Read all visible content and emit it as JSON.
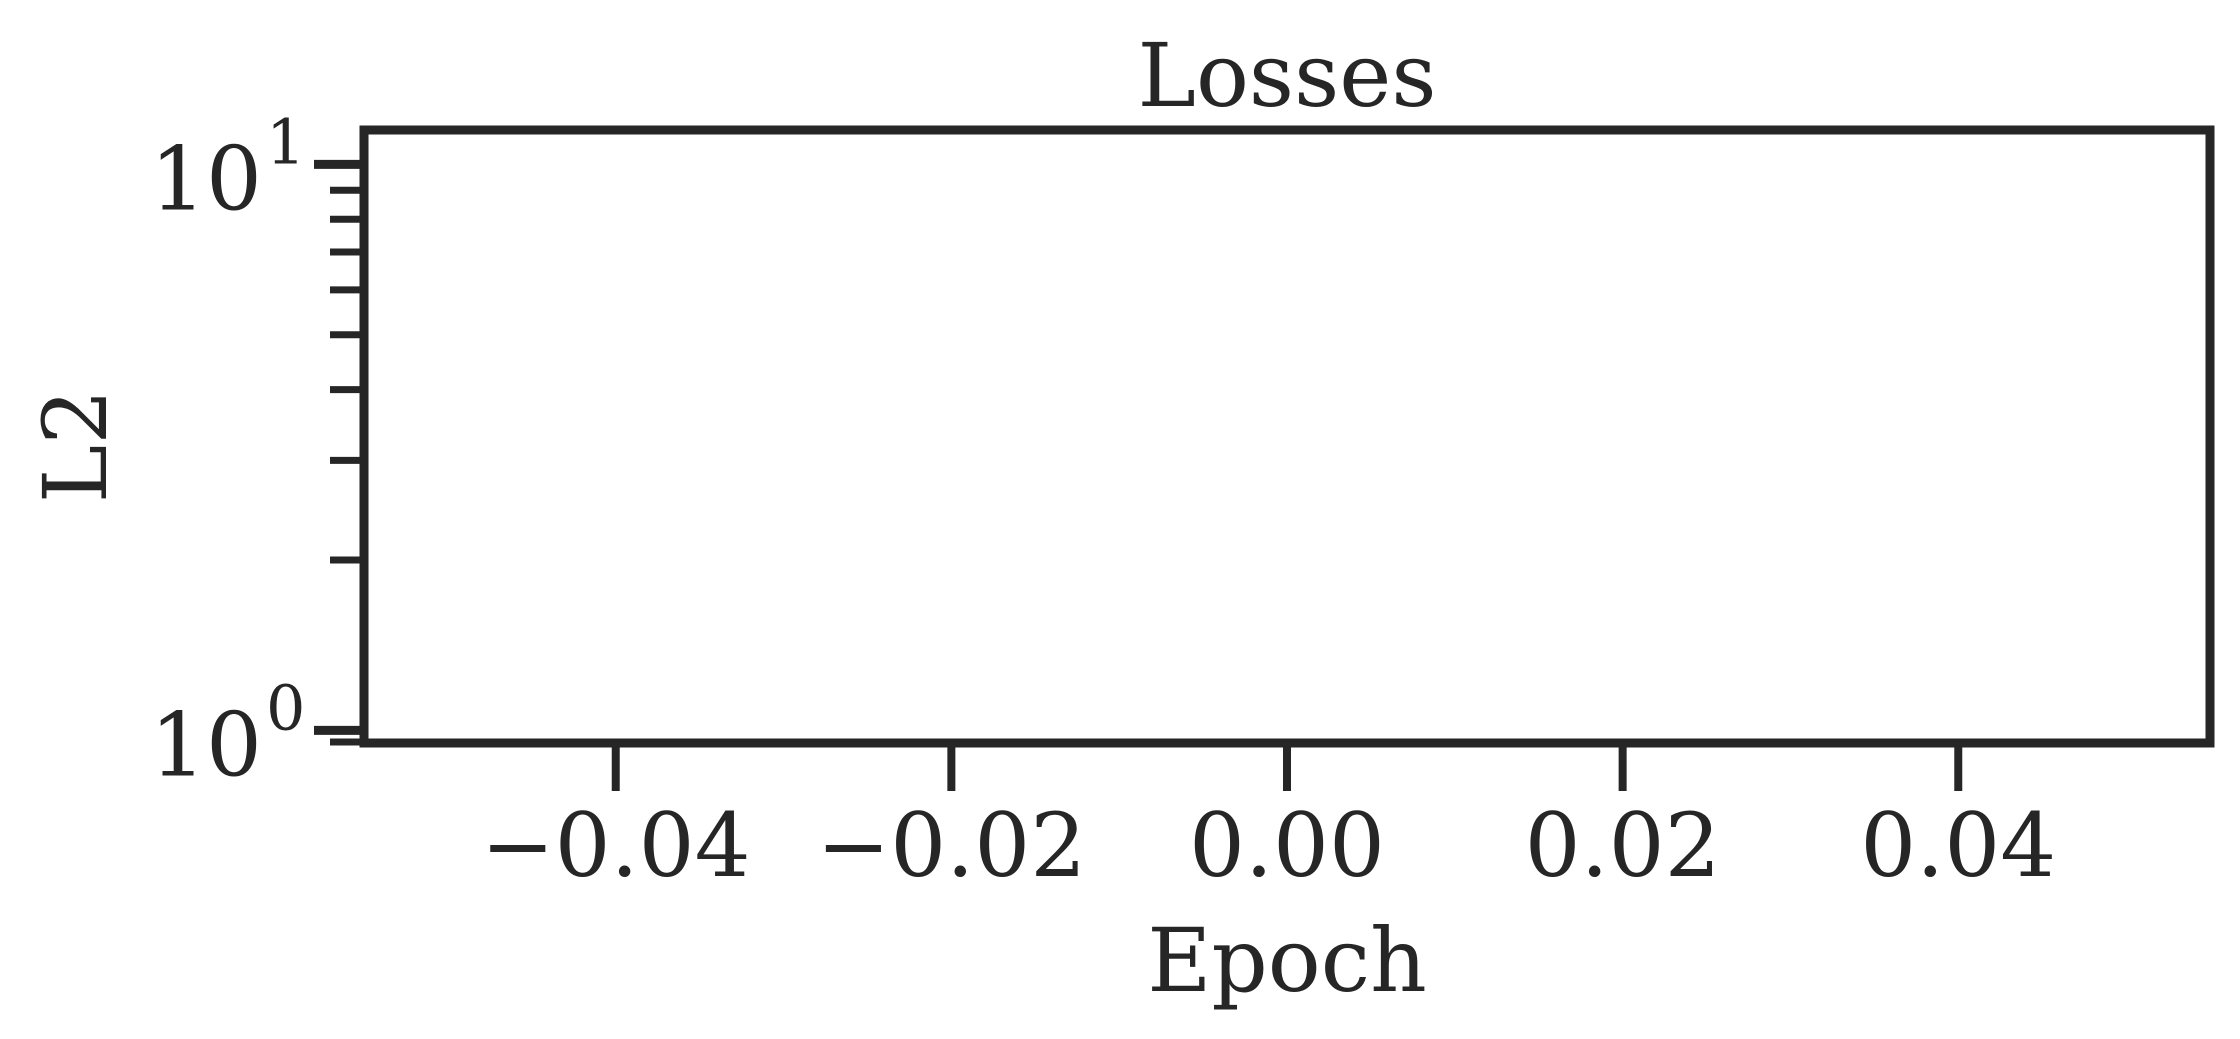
{
  "chart_data": {
    "type": "line",
    "title": "Losses",
    "xlabel": "Epoch",
    "ylabel": "L2",
    "xlim": [
      -0.055,
      0.055
    ],
    "ylim": [
      0.95,
      11.5
    ],
    "yscale": "log",
    "grid": false,
    "series": [],
    "x_ticks": [
      {
        "value": -0.04,
        "label": "−0.04"
      },
      {
        "value": -0.02,
        "label": "−0.02"
      },
      {
        "value": 0.0,
        "label": "0.00"
      },
      {
        "value": 0.02,
        "label": "0.02"
      },
      {
        "value": 0.04,
        "label": "0.04"
      }
    ],
    "y_major_ticks": [
      {
        "value": 1,
        "base": "10",
        "exponent": "0"
      },
      {
        "value": 10,
        "base": "10",
        "exponent": "1"
      }
    ],
    "y_minor_ticks": [
      2,
      3,
      4,
      5,
      6,
      7,
      8,
      9
    ]
  },
  "colors": {
    "ink": "#262626",
    "background": "#ffffff"
  }
}
